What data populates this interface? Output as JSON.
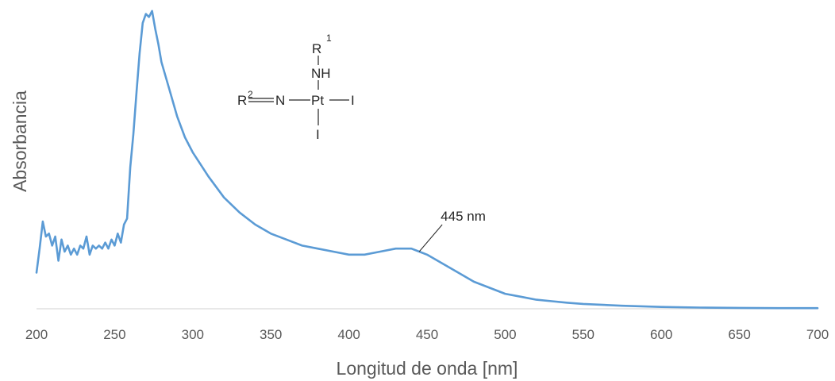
{
  "chart_data": {
    "type": "line",
    "xlabel": "Longitud de onda [nm]",
    "ylabel": "Absorbancia",
    "xlim": [
      200,
      700
    ],
    "ylim": [
      0,
      1
    ],
    "xticks": [
      "200",
      "250",
      "300",
      "350",
      "400",
      "450",
      "500",
      "550",
      "600",
      "650",
      "700"
    ],
    "grid": false,
    "legend": "none",
    "line_color": "#5B9BD5",
    "axis_color": "#D9D9D9",
    "series": [
      {
        "x": [
          200,
          202,
          204,
          206,
          208,
          210,
          212,
          214,
          216,
          218,
          220,
          222,
          224,
          226,
          228,
          230,
          232,
          234,
          236,
          238,
          240,
          242,
          244,
          246,
          248,
          250,
          252,
          254,
          256,
          258,
          260,
          262,
          264,
          266,
          268,
          270,
          272,
          274,
          276,
          278,
          280,
          285,
          290,
          295,
          300,
          310,
          320,
          330,
          340,
          350,
          360,
          370,
          380,
          390,
          400,
          405,
          410,
          420,
          430,
          435,
          440,
          445,
          450,
          460,
          470,
          480,
          490,
          500,
          510,
          520,
          530,
          540,
          550,
          575,
          600,
          625,
          650,
          675,
          700
        ],
        "y": [
          0.12,
          0.2,
          0.29,
          0.24,
          0.25,
          0.21,
          0.24,
          0.16,
          0.23,
          0.19,
          0.21,
          0.18,
          0.2,
          0.18,
          0.21,
          0.2,
          0.24,
          0.18,
          0.21,
          0.2,
          0.21,
          0.2,
          0.22,
          0.2,
          0.23,
          0.21,
          0.25,
          0.22,
          0.28,
          0.3,
          0.47,
          0.58,
          0.72,
          0.85,
          0.95,
          0.98,
          0.97,
          0.99,
          0.93,
          0.88,
          0.82,
          0.73,
          0.64,
          0.57,
          0.52,
          0.44,
          0.37,
          0.32,
          0.28,
          0.25,
          0.23,
          0.21,
          0.2,
          0.19,
          0.18,
          0.18,
          0.18,
          0.19,
          0.2,
          0.2,
          0.2,
          0.19,
          0.18,
          0.15,
          0.12,
          0.09,
          0.07,
          0.05,
          0.04,
          0.03,
          0.025,
          0.02,
          0.016,
          0.01,
          0.006,
          0.004,
          0.003,
          0.002,
          0.002
        ]
      }
    ],
    "annotation": {
      "text": "445 nm",
      "x": 445,
      "y": 0.19
    }
  },
  "structure": {
    "r1": "R",
    "r1_sup": "1",
    "nh": "NH",
    "r2": "R",
    "r2_sup": "2",
    "n": "N",
    "pt": "Pt",
    "i_right": "I",
    "i_bottom": "I"
  }
}
